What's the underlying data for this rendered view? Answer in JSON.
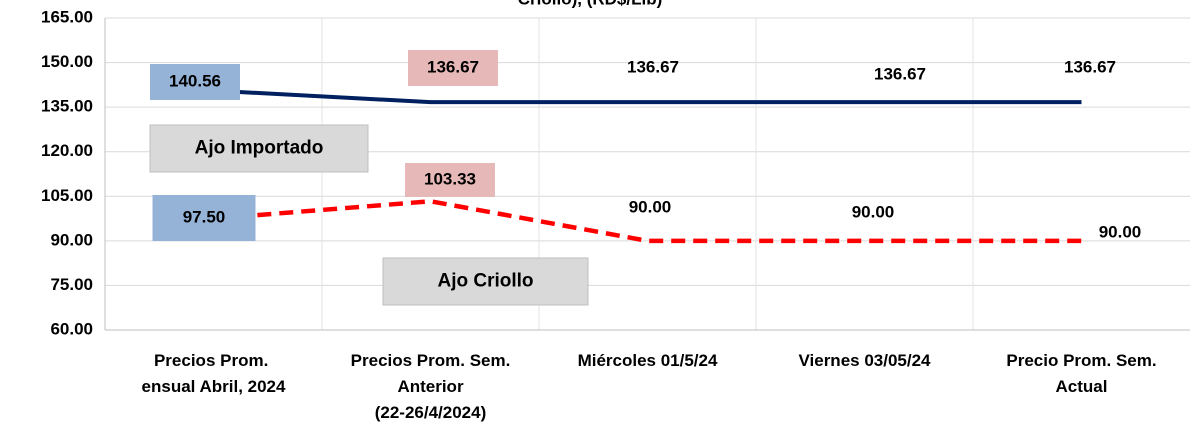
{
  "chart_data": {
    "type": "line",
    "title": "Criollo), (RD$/Lib)",
    "categories": [
      "Precios Prom. Mensual Abril, 2024",
      "Precios Prom. Sem. Anterior (22-26/4/2024)",
      "Miércoles 01/5/24",
      "Viernes 03/05/24",
      "Precio Prom. Sem. Actual"
    ],
    "series": [
      {
        "name": "Ajo Importado",
        "color": "#002060",
        "values": [
          140.56,
          136.67,
          136.67,
          136.67,
          136.67
        ],
        "value_labels": [
          "140.56",
          "136.67",
          "136.67",
          "136.67",
          "136.67"
        ]
      },
      {
        "name": "Ajo Criollo",
        "color": "#ff0000",
        "values": [
          97.5,
          103.33,
          90,
          90,
          90
        ],
        "value_labels": [
          "97.50",
          "103.33",
          "90.00",
          "90.00",
          "90.00"
        ]
      }
    ],
    "ylim": [
      60,
      165
    ],
    "yticks": [
      {
        "value": 60,
        "label": "60.00"
      },
      {
        "value": 75,
        "label": "75.00"
      },
      {
        "value": 90,
        "label": "90.00"
      },
      {
        "value": 105,
        "label": "105.00"
      },
      {
        "value": 120,
        "label": "120.00"
      },
      {
        "value": 135,
        "label": "135.00"
      },
      {
        "value": 150,
        "label": "150.00"
      },
      {
        "value": 165,
        "label": "165.00"
      }
    ],
    "grid": true
  }
}
